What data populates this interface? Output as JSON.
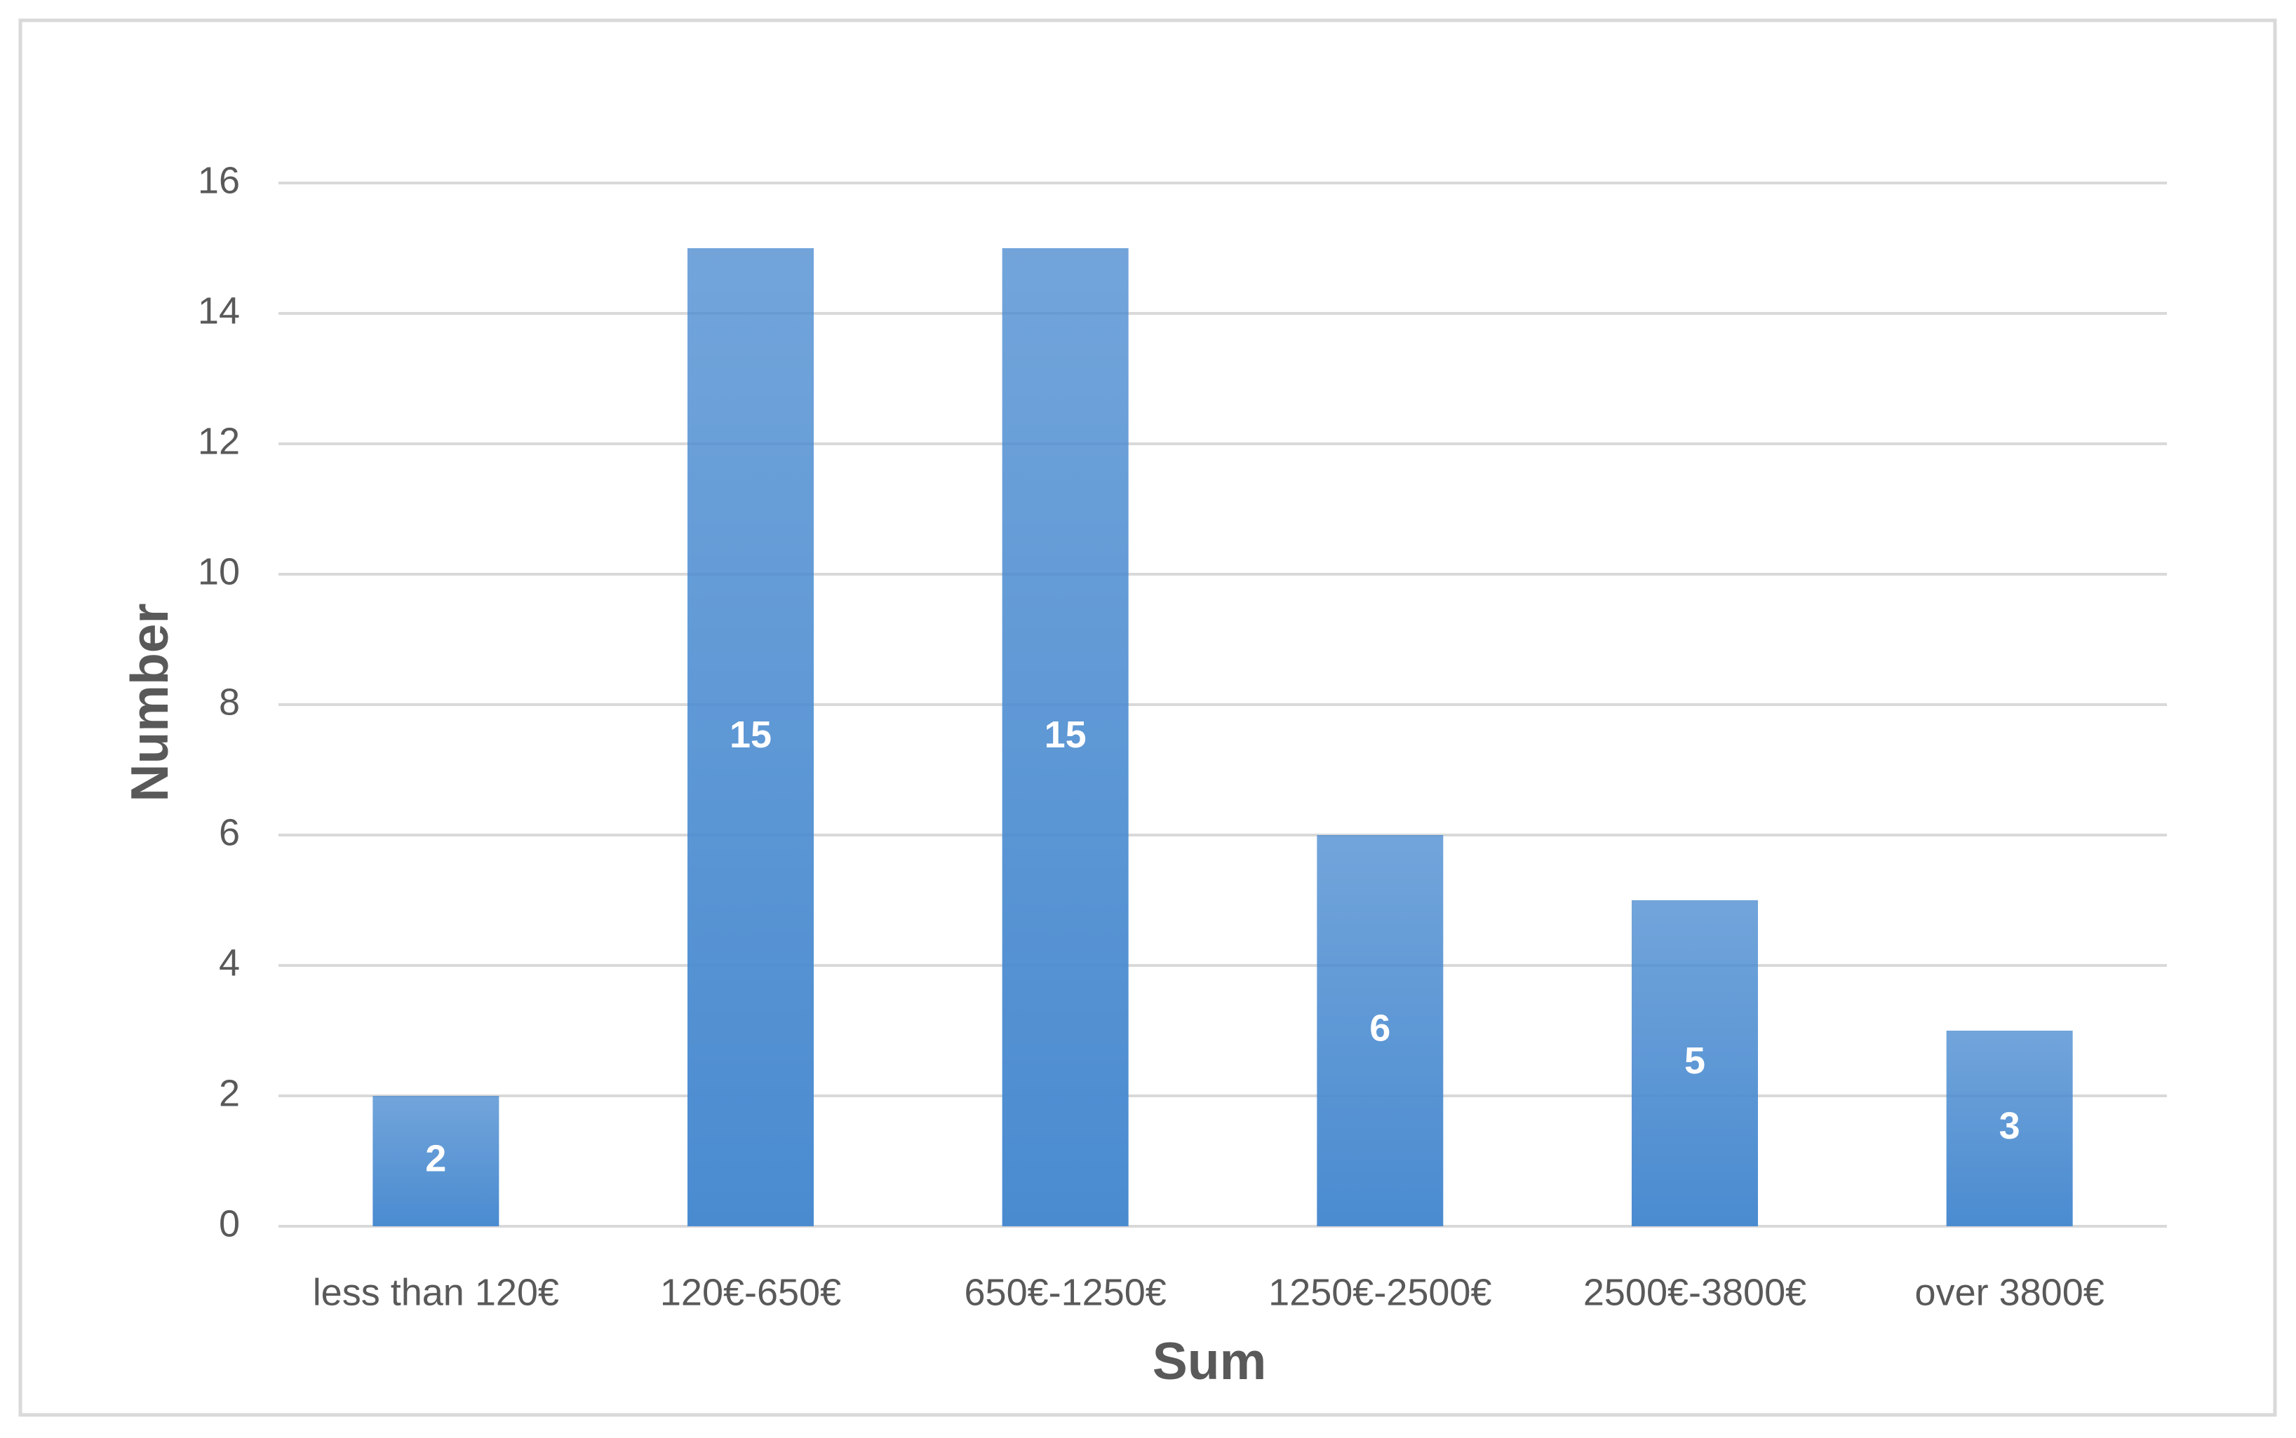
{
  "chart_data": {
    "type": "bar",
    "categories": [
      "less than 120€",
      "120€-650€",
      "650€-1250€",
      "1250€-2500€",
      "2500€-3800€",
      "over 3800€"
    ],
    "values": [
      2,
      15,
      15,
      6,
      5,
      3
    ],
    "color": "#4a8bd0",
    "x_label": "Sum",
    "y_label": "Number",
    "ylim": [
      0,
      16
    ],
    "yticks": [
      0,
      2,
      4,
      6,
      8,
      10,
      12,
      14,
      16
    ],
    "grid": true
  }
}
